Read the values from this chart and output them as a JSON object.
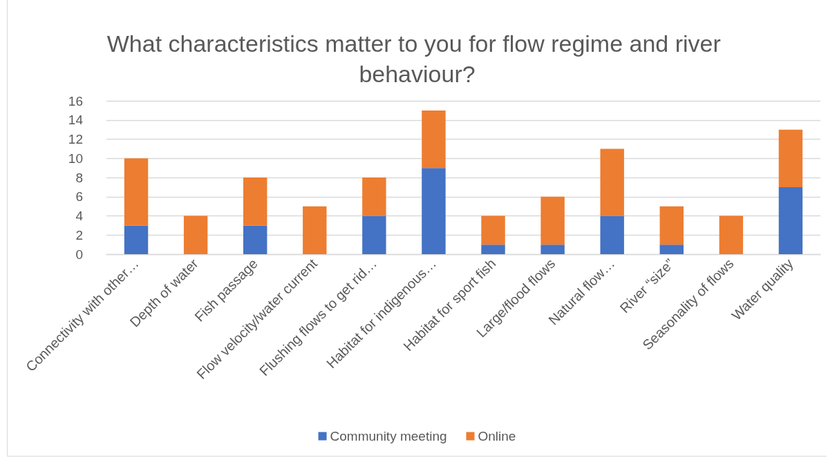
{
  "chart_data": {
    "type": "bar",
    "title": "What characteristics matter to you for flow regime and river behaviour?",
    "categories": [
      "Connectivity with other…",
      "Depth of water",
      "Fish passage",
      "Flow velocity/water current",
      "Flushing flows to get rid…",
      "Habitat for indigenous…",
      "Habitat for sport fish",
      "Large/flood flows",
      "Natural flow…",
      "River “size”",
      "Seasonality of flows",
      "Water quality"
    ],
    "series": [
      {
        "name": "Community meeting",
        "color": "#4472c4",
        "values": [
          3,
          0,
          3,
          0,
          4,
          9,
          1,
          1,
          4,
          1,
          0,
          7
        ]
      },
      {
        "name": "Online",
        "color": "#ed7d31",
        "values": [
          7,
          4,
          5,
          5,
          4,
          6,
          3,
          5,
          7,
          4,
          4,
          6
        ]
      }
    ],
    "stacked": true,
    "ylim": [
      0,
      16
    ],
    "yticks": [
      0,
      2,
      4,
      6,
      8,
      10,
      12,
      14,
      16
    ],
    "grid": "y",
    "legend": "bottom"
  }
}
